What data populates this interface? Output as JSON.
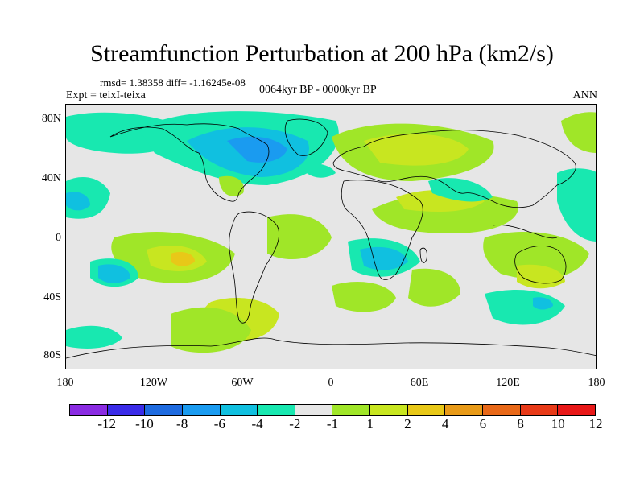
{
  "title": "Streamfunction Perturbation at 200 hPa (km2/s)",
  "stats": "rmsd= 1.38358 diff= -1.16245e-08",
  "expt": "Expt = teixI-teixa",
  "period": "0064kyr BP - 0000kyr BP",
  "season": "ANN",
  "lat_labels": [
    "80N",
    "40N",
    "0",
    "40S",
    "80S"
  ],
  "lon_labels": [
    "180",
    "120W",
    "60W",
    "0",
    "60E",
    "120E",
    "180"
  ],
  "colorbar": {
    "colors": [
      "#8a2be2",
      "#3a2be8",
      "#1e6be0",
      "#1a9bf0",
      "#10c0e0",
      "#18e8b0",
      "#e6e6e6",
      "#a0e628",
      "#c8e620",
      "#e8c818",
      "#e89a18",
      "#e86818",
      "#e83a18",
      "#e81818"
    ],
    "labels": [
      "-12",
      "-10",
      "-8",
      "-6",
      "-4",
      "-2",
      "-1",
      "1",
      "2",
      "4",
      "6",
      "8",
      "10",
      "12"
    ]
  }
}
